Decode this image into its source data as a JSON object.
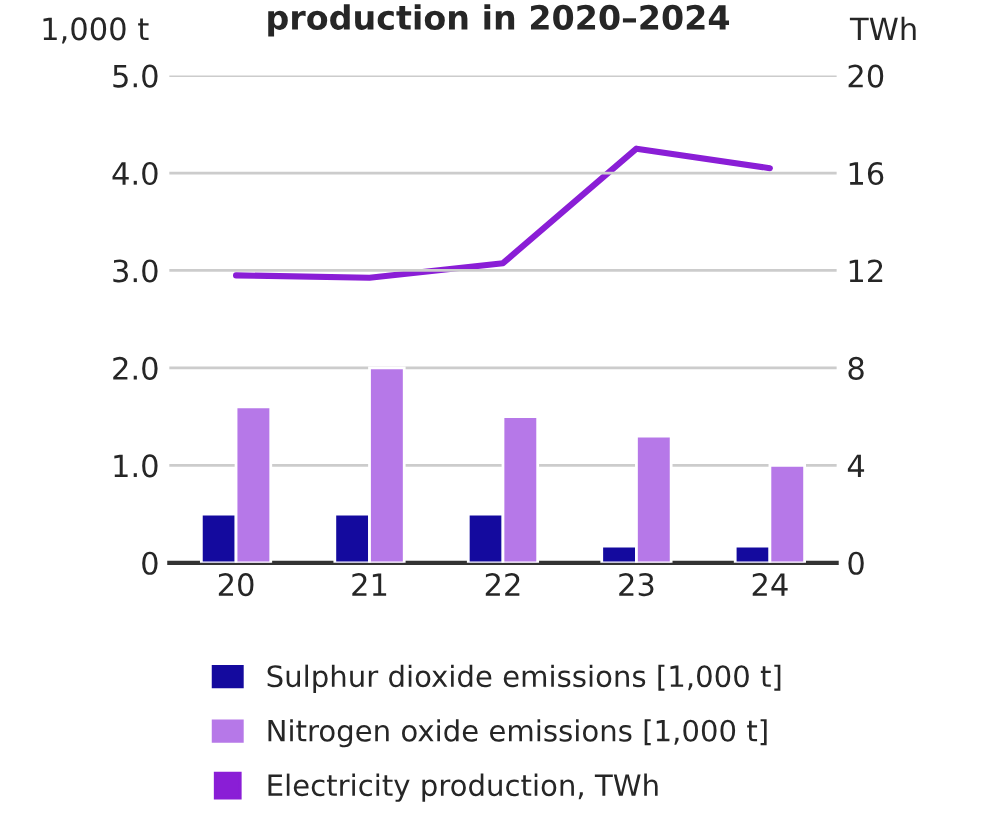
{
  "chart_data": {
    "type": "bar",
    "title": "production in 2020–2024",
    "ylabel": "1,000 t",
    "y2label": "TWh",
    "categories": [
      "20",
      "21",
      "22",
      "23",
      "24"
    ],
    "series": [
      {
        "name": "Sulphur dioxide emissions [1,000 t]",
        "color": "#140a9e",
        "values": [
          0.5,
          0.5,
          0.5,
          0.17,
          0.17
        ]
      },
      {
        "name": "Nitrogen oxide emissions [1,000 t]",
        "color": "#b678e8",
        "values": [
          1.6,
          2.0,
          1.5,
          1.3,
          1.0
        ]
      },
      {
        "name": "Electricity production, TWh",
        "type": "line",
        "axis": "y2",
        "color": "#8a1ed6",
        "values": [
          11.8,
          11.7,
          12.3,
          17.0,
          16.2
        ]
      }
    ],
    "ylim": [
      0,
      5
    ],
    "yticks": [
      0,
      {
        "value": 1,
        "label": "1.0"
      },
      {
        "value": 2,
        "label": "2.0"
      },
      {
        "value": 3,
        "label": "3.0"
      },
      {
        "value": 4,
        "label": "4.0"
      },
      {
        "value": 5,
        "label": "5.0"
      }
    ],
    "y2lim": [
      0,
      20
    ],
    "y2ticks": [
      0,
      4,
      8,
      12,
      16,
      20
    ],
    "grid": "y",
    "legend": "bottom",
    "marker": "none"
  }
}
